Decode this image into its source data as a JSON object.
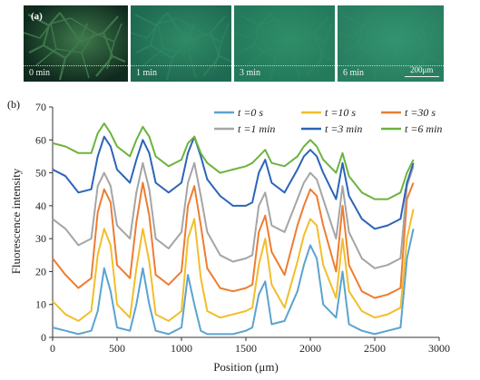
{
  "panel_a": {
    "label": "(a)",
    "scale_bar": "200μm",
    "frames": [
      {
        "time": "0 min",
        "wash": "#0f2a1e",
        "line": "#3f7a4c",
        "line_opacity": 0.9
      },
      {
        "time": "1 min",
        "wash": "#1f6a52",
        "line": "#2f8a66",
        "line_opacity": 0.55
      },
      {
        "time": "3 min",
        "wash": "#237a5c",
        "line": "#2f8e68",
        "line_opacity": 0.35
      },
      {
        "time": "6 min",
        "wash": "#287e60",
        "line": "#339470",
        "line_opacity": 0.25
      }
    ]
  },
  "panel_b_label": "(b)",
  "chart_data": {
    "type": "line",
    "xlabel": "Position (μm)",
    "ylabel": "Fluorescence intensity",
    "xlim": [
      0,
      3000
    ],
    "ylim": [
      0,
      70
    ],
    "xticks": [
      0,
      500,
      1000,
      1500,
      2000,
      2500,
      3000
    ],
    "yticks": [
      0,
      10,
      20,
      30,
      40,
      50,
      60,
      70
    ],
    "grid": false,
    "legend_position": "top-right",
    "x": [
      0,
      100,
      200,
      300,
      350,
      400,
      450,
      500,
      600,
      650,
      700,
      750,
      800,
      900,
      1000,
      1050,
      1100,
      1150,
      1200,
      1300,
      1400,
      1500,
      1550,
      1600,
      1650,
      1700,
      1800,
      1900,
      1950,
      2000,
      2050,
      2100,
      2200,
      2250,
      2300,
      2400,
      2500,
      2600,
      2700,
      2750,
      2800
    ],
    "series": [
      {
        "name": "t =0 s",
        "color": "#5ba3d0",
        "values": [
          3,
          2,
          1,
          2,
          8,
          21,
          14,
          3,
          2,
          10,
          21,
          10,
          2,
          1,
          3,
          19,
          10,
          2,
          1,
          1,
          1,
          2,
          3,
          13,
          17,
          4,
          5,
          14,
          22,
          28,
          24,
          10,
          6,
          20,
          4,
          2,
          1,
          2,
          3,
          24,
          33
        ]
      },
      {
        "name": "t =10 s",
        "color": "#f2be2c",
        "values": [
          11,
          7,
          5,
          8,
          25,
          33,
          28,
          10,
          6,
          21,
          33,
          23,
          7,
          5,
          8,
          30,
          36,
          18,
          8,
          6,
          7,
          8,
          9,
          22,
          30,
          16,
          9,
          23,
          31,
          36,
          34,
          22,
          12,
          30,
          14,
          8,
          6,
          7,
          9,
          30,
          39
        ]
      },
      {
        "name": "t =30 s",
        "color": "#ed7d31",
        "values": [
          24,
          19,
          15,
          18,
          38,
          45,
          41,
          22,
          18,
          35,
          47,
          37,
          19,
          16,
          20,
          40,
          46,
          34,
          21,
          15,
          14,
          15,
          16,
          32,
          37,
          26,
          19,
          34,
          40,
          45,
          43,
          34,
          20,
          40,
          22,
          14,
          12,
          13,
          15,
          42,
          47
        ]
      },
      {
        "name": "t =1 min",
        "color": "#a5a5a5",
        "values": [
          36,
          33,
          28,
          30,
          46,
          50,
          46,
          34,
          30,
          44,
          53,
          45,
          30,
          27,
          32,
          47,
          53,
          43,
          32,
          25,
          23,
          24,
          25,
          40,
          44,
          34,
          32,
          42,
          47,
          50,
          48,
          42,
          30,
          46,
          32,
          24,
          21,
          22,
          24,
          46,
          52
        ]
      },
      {
        "name": "t =3 min",
        "color": "#2c64b8",
        "values": [
          51,
          49,
          44,
          45,
          55,
          61,
          58,
          51,
          47,
          54,
          60,
          56,
          47,
          44,
          47,
          56,
          61,
          55,
          48,
          43,
          40,
          40,
          41,
          50,
          54,
          47,
          44,
          51,
          55,
          57,
          55,
          50,
          42,
          53,
          43,
          36,
          33,
          34,
          36,
          47,
          53
        ]
      },
      {
        "name": "t =6 min",
        "color": "#6db33f",
        "values": [
          59,
          58,
          56,
          56,
          62,
          65,
          62,
          58,
          55,
          60,
          64,
          61,
          55,
          52,
          54,
          59,
          61,
          56,
          53,
          50,
          51,
          52,
          53,
          55,
          57,
          53,
          52,
          55,
          58,
          60,
          58,
          54,
          50,
          56,
          49,
          44,
          42,
          42,
          44,
          50,
          54
        ]
      }
    ]
  }
}
